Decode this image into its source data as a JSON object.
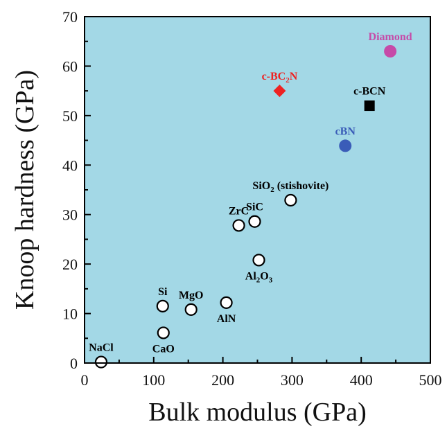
{
  "chart_data": {
    "type": "scatter",
    "title": "",
    "xlabel": "Bulk modulus (GPa)",
    "ylabel": "Knoop hardness (GPa)",
    "xlim": [
      0,
      500
    ],
    "ylim": [
      0,
      70
    ],
    "x_ticks": [
      0,
      100,
      200,
      300,
      400,
      500
    ],
    "y_ticks": [
      0,
      10,
      20,
      30,
      40,
      50,
      60,
      70
    ],
    "grid": false,
    "background": "#a3d8e6",
    "points": [
      {
        "name": "NaCl",
        "x": 24,
        "y": 0.2,
        "marker": "open-circle",
        "color": "#000000",
        "label_pos": "above"
      },
      {
        "name": "CaO",
        "x": 114,
        "y": 6.1,
        "marker": "open-circle",
        "color": "#000000",
        "label_pos": "below"
      },
      {
        "name": "Si",
        "x": 113,
        "y": 11.5,
        "marker": "open-circle",
        "color": "#000000",
        "label_pos": "above"
      },
      {
        "name": "MgO",
        "x": 154,
        "y": 10.8,
        "marker": "open-circle",
        "color": "#000000",
        "label_pos": "above"
      },
      {
        "name": "AlN",
        "x": 205,
        "y": 12.2,
        "marker": "open-circle",
        "color": "#000000",
        "label_pos": "below"
      },
      {
        "name": "Al2O3",
        "label": [
          [
            "Al",
            "n"
          ],
          [
            "2",
            "s"
          ],
          [
            "O",
            "n"
          ],
          [
            "3",
            "s"
          ]
        ],
        "x": 252,
        "y": 20.8,
        "marker": "open-circle",
        "color": "#000000",
        "label_pos": "below"
      },
      {
        "name": "ZrC",
        "x": 223,
        "y": 27.8,
        "marker": "open-circle",
        "color": "#000000",
        "label_pos": "above"
      },
      {
        "name": "SiC",
        "x": 246,
        "y": 28.6,
        "marker": "open-circle",
        "color": "#000000",
        "label_pos": "above"
      },
      {
        "name": "SiO2 (stishovite)",
        "label": [
          [
            "SiO",
            "n"
          ],
          [
            "2",
            "s"
          ],
          [
            " (stishovite)",
            "n"
          ]
        ],
        "x": 298,
        "y": 32.9,
        "marker": "open-circle",
        "color": "#000000",
        "label_pos": "above"
      },
      {
        "name": "cBN",
        "x": 377,
        "y": 43.9,
        "marker": "filled-circle",
        "color": "#3a5cb8",
        "label_pos": "above"
      },
      {
        "name": "c-BCN",
        "x": 412,
        "y": 52,
        "marker": "filled-square",
        "color": "#000000",
        "label_pos": "above"
      },
      {
        "name": "c-BC2N",
        "label": [
          [
            "c-BC",
            "n"
          ],
          [
            "2",
            "s"
          ],
          [
            "N",
            "n"
          ]
        ],
        "x": 282,
        "y": 55,
        "marker": "filled-diamond",
        "color": "#ee2222",
        "label_pos": "above"
      },
      {
        "name": "Diamond",
        "x": 442,
        "y": 63,
        "marker": "filled-circle",
        "color": "#c64aa8",
        "label_pos": "above"
      }
    ]
  }
}
